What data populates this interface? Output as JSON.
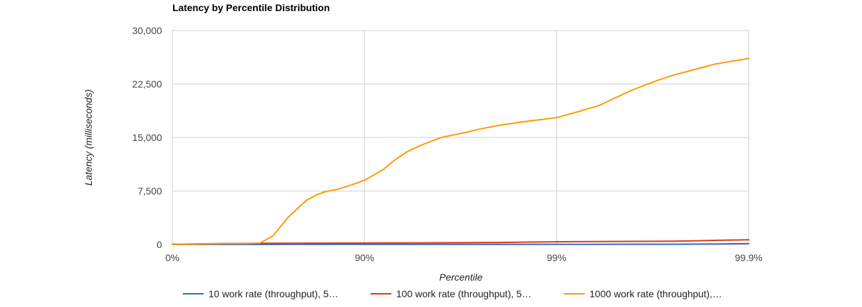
{
  "chart_data": {
    "type": "line",
    "title": "Latency by Percentile Distribution",
    "xlabel": "Percentile",
    "ylabel": "Latency (milliseconds)",
    "ylim": [
      0,
      30000
    ],
    "y_ticks": [
      "0",
      "7,500",
      "15,000",
      "22,500",
      "30,000"
    ],
    "x_scale": "percentile (log of 1/(1-p))",
    "x_ticks": [
      "0%",
      "90%",
      "99%",
      "99.9%"
    ],
    "x": [
      0,
      30,
      50,
      60,
      65,
      70,
      75,
      78,
      80,
      82,
      84,
      86,
      87.5,
      89,
      90,
      91,
      92,
      93,
      94,
      95,
      96,
      97,
      97.5,
      98,
      98.5,
      99,
      99.2,
      99.4,
      99.5,
      99.6,
      99.7,
      99.75,
      99.8,
      99.85,
      99.9
    ],
    "series": [
      {
        "name": "10 work rate (throughput), 5…",
        "color": "#3366cc",
        "values": [
          5,
          8,
          10,
          12,
          13,
          14,
          15,
          16,
          17,
          17,
          18,
          18,
          19,
          19,
          20,
          20,
          21,
          21,
          22,
          22,
          23,
          24,
          25,
          26,
          28,
          30,
          32,
          34,
          36,
          38,
          40,
          42,
          45,
          60,
          120
        ]
      },
      {
        "name": "100 work rate (throughput), 5…",
        "color": "#dc3912",
        "values": [
          20,
          100,
          150,
          160,
          165,
          170,
          175,
          180,
          182,
          185,
          188,
          190,
          192,
          195,
          200,
          205,
          210,
          215,
          220,
          230,
          240,
          250,
          260,
          280,
          330,
          380,
          400,
          420,
          430,
          440,
          450,
          470,
          500,
          580,
          650
        ]
      },
      {
        "name": "1000 work rate (throughput),…",
        "color": "#ff9900",
        "values": [
          20,
          80,
          120,
          150,
          200,
          1200,
          3800,
          5200,
          6200,
          6900,
          7400,
          7700,
          8100,
          8600,
          9000,
          9700,
          10500,
          11800,
          13000,
          14000,
          15000,
          15700,
          16200,
          16700,
          17200,
          17800,
          18500,
          19500,
          20500,
          21700,
          23000,
          23700,
          24400,
          25300,
          26100
        ]
      }
    ],
    "grid": true,
    "legend": "bottom"
  }
}
